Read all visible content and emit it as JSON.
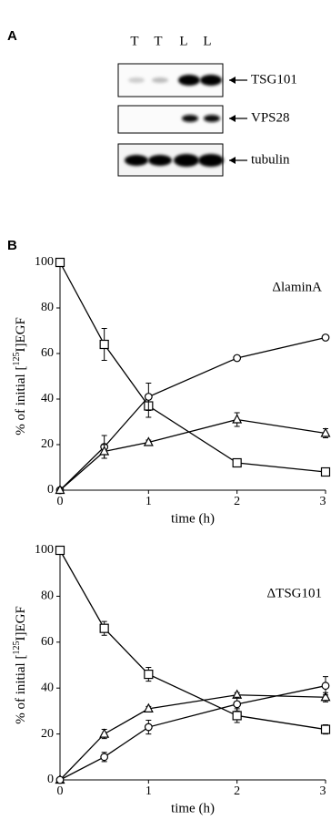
{
  "panel_a": {
    "label": "A",
    "lanes": [
      "T",
      "T",
      "L",
      "L"
    ],
    "blots": [
      "TSG101",
      "VPS28",
      "tubulin"
    ]
  },
  "panel_b": {
    "label": "B"
  },
  "chart_data": [
    {
      "type": "line",
      "annotation": "ΔlaminA",
      "x_label": "time (h)",
      "y_label": [
        "% of initial [",
        "125",
        "I]EGF"
      ],
      "x": [
        0,
        0.5,
        1,
        2,
        3
      ],
      "xlim": [
        0,
        3
      ],
      "xticks": [
        0,
        1,
        2,
        3
      ],
      "ylim": [
        0,
        100
      ],
      "yticks": [
        0,
        20,
        40,
        60,
        80,
        100
      ],
      "series": [
        {
          "marker": "square",
          "color": "#000000",
          "values": [
            100,
            64,
            37,
            12,
            8
          ],
          "errors": [
            0,
            7,
            5,
            1,
            1
          ]
        },
        {
          "marker": "circle",
          "color": "#000000",
          "values": [
            0,
            19,
            41,
            58,
            67
          ],
          "errors": [
            0,
            5,
            6,
            1,
            1
          ]
        },
        {
          "marker": "triangle",
          "color": "#000000",
          "values": [
            0,
            17,
            21,
            31,
            25
          ],
          "errors": [
            0,
            3,
            1,
            3,
            2
          ]
        }
      ]
    },
    {
      "type": "line",
      "annotation": "ΔTSG101",
      "x_label": "time (h)",
      "y_label": [
        "% of initial [",
        "125",
        "I]EGF"
      ],
      "x": [
        0,
        0.5,
        1,
        2,
        3
      ],
      "xlim": [
        0,
        3
      ],
      "xticks": [
        0,
        1,
        2,
        3
      ],
      "ylim": [
        0,
        100
      ],
      "yticks": [
        0,
        20,
        40,
        60,
        80,
        100
      ],
      "series": [
        {
          "marker": "square",
          "color": "#000000",
          "values": [
            100,
            66,
            46,
            28,
            22
          ],
          "errors": [
            0,
            3,
            3,
            3,
            2
          ]
        },
        {
          "marker": "triangle",
          "color": "#000000",
          "values": [
            0,
            20,
            31,
            37,
            36
          ],
          "errors": [
            0,
            2,
            1,
            1,
            2
          ]
        },
        {
          "marker": "circle",
          "color": "#000000",
          "values": [
            0,
            10,
            23,
            33,
            41
          ],
          "errors": [
            0,
            2,
            3,
            3,
            4
          ]
        }
      ]
    }
  ]
}
